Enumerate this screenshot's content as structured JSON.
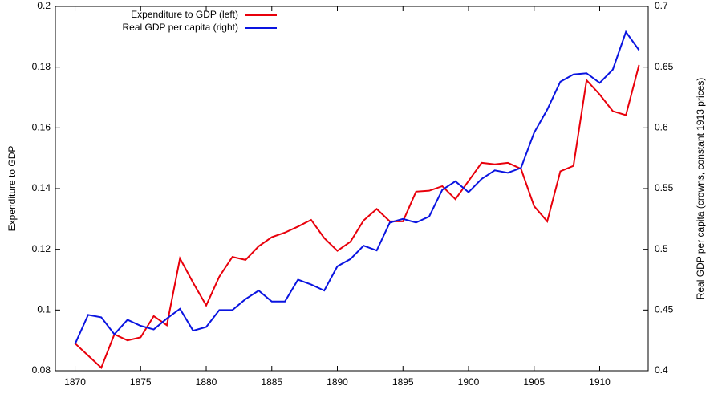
{
  "chart_data": {
    "type": "line",
    "ylabel": "Expenditure to GDP",
    "y2label": "Real GDP per capita (crowns, constant 1913 prices)",
    "x": [
      1870,
      1871,
      1872,
      1873,
      1874,
      1875,
      1876,
      1877,
      1878,
      1879,
      1880,
      1881,
      1882,
      1883,
      1884,
      1885,
      1886,
      1887,
      1888,
      1889,
      1890,
      1891,
      1892,
      1893,
      1894,
      1895,
      1896,
      1897,
      1898,
      1899,
      1900,
      1901,
      1902,
      1903,
      1904,
      1905,
      1906,
      1907,
      1908,
      1909,
      1910,
      1911,
      1912,
      1913
    ],
    "series": [
      {
        "name": "Expenditure to GDP (left)",
        "color": "#e8000b",
        "values": [
          0.089,
          0.085,
          0.081,
          0.092,
          0.09,
          0.091,
          0.098,
          0.095,
          0.117,
          0.109,
          0.1015,
          0.111,
          0.1175,
          0.1165,
          0.121,
          0.124,
          0.1255,
          0.1275,
          0.1297,
          0.1237,
          0.1195,
          0.1225,
          0.1295,
          0.1333,
          0.1292,
          0.1292,
          0.139,
          0.1393,
          0.1408,
          0.1365,
          0.1425,
          0.1485,
          0.148,
          0.1485,
          0.1465,
          0.1342,
          0.1292,
          0.1457,
          0.1475,
          0.1757,
          0.171,
          0.1655,
          0.1642,
          0.1807
        ]
      },
      {
        "name": "Real GDP per capita (right)",
        "color": "#0a14e0",
        "axis": "y2",
        "values": [
          0.422,
          0.446,
          0.444,
          0.43,
          0.442,
          0.437,
          0.434,
          0.443,
          0.451,
          0.433,
          0.436,
          0.45,
          0.45,
          0.459,
          0.466,
          0.457,
          0.457,
          0.475,
          0.471,
          0.466,
          0.486,
          0.492,
          0.503,
          0.499,
          0.522,
          0.525,
          0.522,
          0.527,
          0.549,
          0.556,
          0.547,
          0.558,
          0.565,
          0.563,
          0.567,
          0.596,
          0.615,
          0.638,
          0.644,
          0.645,
          0.637,
          0.648,
          0.679,
          0.664
        ]
      }
    ],
    "xlim": [
      1868.5,
      1913.7
    ],
    "xticks": [
      1870,
      1875,
      1880,
      1885,
      1890,
      1895,
      1900,
      1905,
      1910
    ],
    "ylim": [
      0.08,
      0.2
    ],
    "yticks": [
      0.08,
      0.1,
      0.12,
      0.14,
      0.16,
      0.18,
      0.2
    ],
    "y2lim": [
      0.4,
      0.7
    ],
    "y2ticks": [
      0.4,
      0.45,
      0.5,
      0.55,
      0.6,
      0.65,
      0.7
    ],
    "legend": "top-left"
  }
}
